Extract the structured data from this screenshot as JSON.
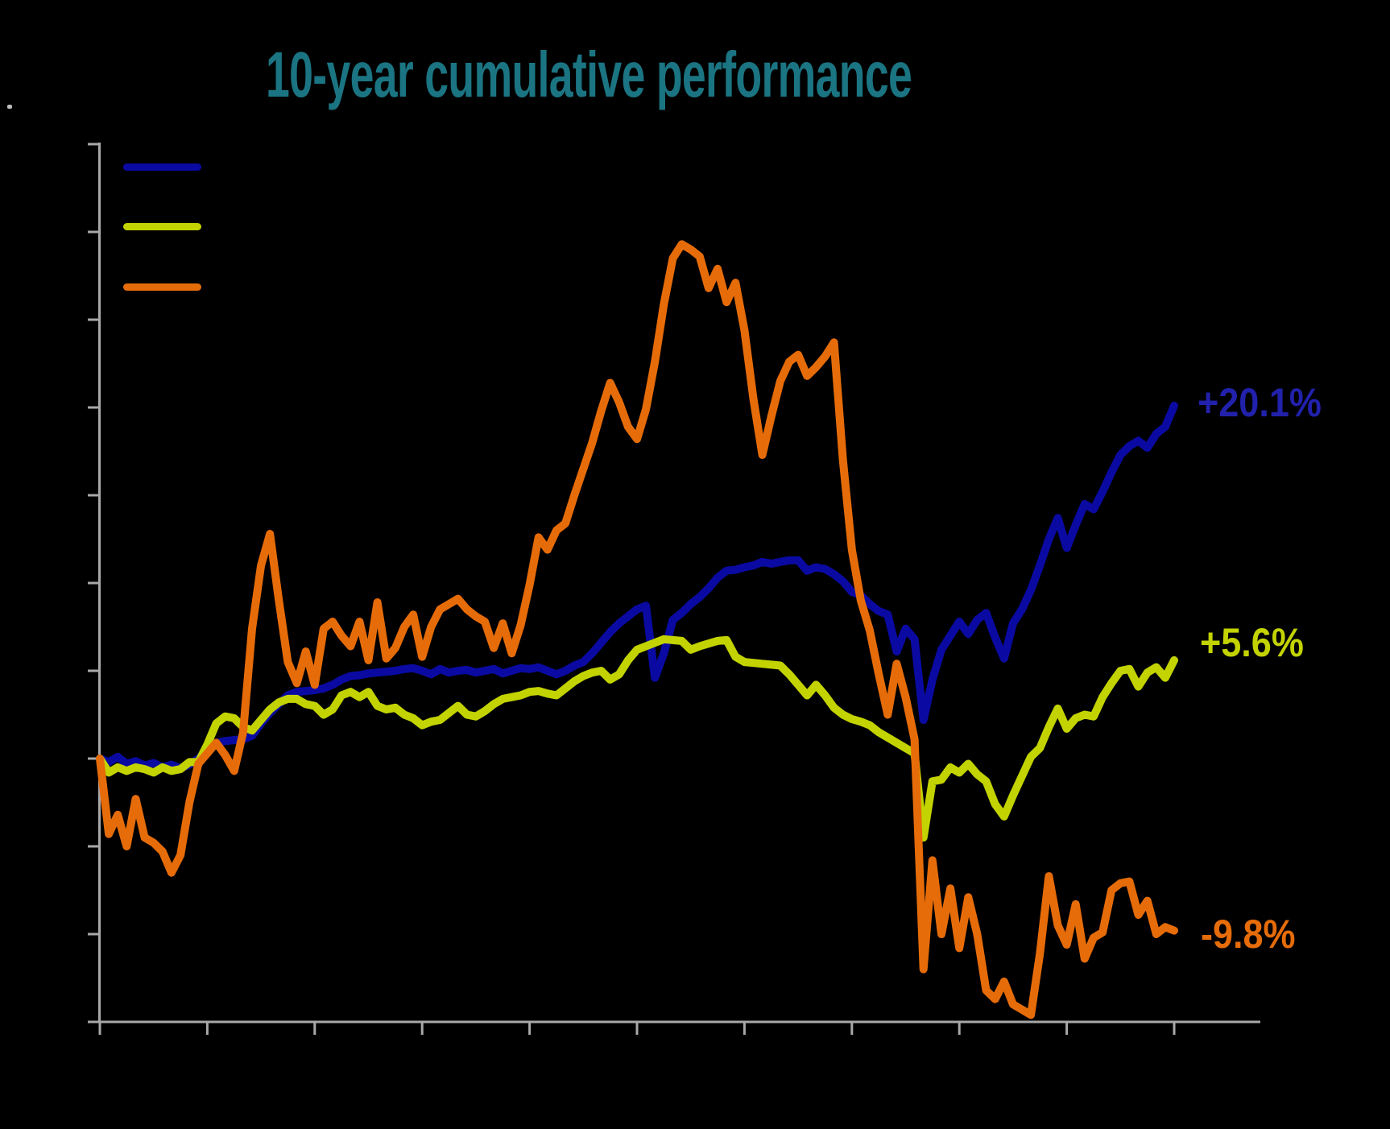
{
  "page": {
    "background_color": "#000000",
    "accent_colors": {
      "title_teal": "#1B7482",
      "axis_gray": "#A8A8A8",
      "navy": "#0A0AA2",
      "chartreuse": "#C3D300",
      "orange": "#E66C09"
    }
  },
  "title": {
    "text": "10-year cumulative performance",
    "color": "#1B7482"
  },
  "legend": {
    "position": "top-left-inside",
    "items": [
      {
        "name": "series-1",
        "color": "#0A0AA2",
        "label": ""
      },
      {
        "name": "series-2",
        "color": "#C3D300",
        "label": ""
      },
      {
        "name": "series-3",
        "color": "#E66C09",
        "label": ""
      }
    ]
  },
  "chart_data": {
    "type": "line",
    "title": "10-year cumulative performance",
    "xlabel": "",
    "ylabel": "",
    "x_axis": {
      "unit": "months",
      "min": 0,
      "max": 120,
      "tick_interval_months": 12,
      "tick_count": 11,
      "tick_labels_visible": false
    },
    "y_axis": {
      "unit": "percent",
      "min": -15,
      "max": 35,
      "tick_interval": 5,
      "tick_count": 11,
      "zero_baseline_at_start": true,
      "tick_labels_visible": false
    },
    "grid": false,
    "legend_position": "top-left-inside",
    "series": [
      {
        "name": "navy-line",
        "color": "#0A0AA2",
        "end_label": "+20.1%",
        "end_label_color": "#2121AC",
        "values": [
          0,
          -0.2,
          0.1,
          -0.3,
          -0.15,
          -0.4,
          -0.25,
          -0.5,
          -0.35,
          -0.55,
          -0.35,
          0,
          0.5,
          0.9,
          1.0,
          1.05,
          1.1,
          1.3,
          2.0,
          2.6,
          3.1,
          3.6,
          3.8,
          3.85,
          3.9,
          4.0,
          4.2,
          4.5,
          4.7,
          4.75,
          4.85,
          4.9,
          4.95,
          5.0,
          5.1,
          5.15,
          5.0,
          4.8,
          5.1,
          4.9,
          5.0,
          5.05,
          4.9,
          5.0,
          5.1,
          4.85,
          5.0,
          5.15,
          5.1,
          5.2,
          5.0,
          4.8,
          5.0,
          5.3,
          5.5,
          6.0,
          6.6,
          7.2,
          7.7,
          8.1,
          8.5,
          8.7,
          4.6,
          6.0,
          7.9,
          8.3,
          8.8,
          9.2,
          9.7,
          10.3,
          10.7,
          10.75,
          10.9,
          11.0,
          11.2,
          11.1,
          11.2,
          11.3,
          11.3,
          10.7,
          10.9,
          10.8,
          10.5,
          10.1,
          9.5,
          9.3,
          8.8,
          8.4,
          8.2,
          6.1,
          7.4,
          6.8,
          2.2,
          4.5,
          6.2,
          7.0,
          7.8,
          7.1,
          7.9,
          8.3,
          6.9,
          5.7,
          7.7,
          8.5,
          9.6,
          11.0,
          12.5,
          13.7,
          12.0,
          13.3,
          14.5,
          14.2,
          15.2,
          16.3,
          17.3,
          17.8,
          18.1,
          17.7,
          18.5,
          18.9,
          20.1
        ]
      },
      {
        "name": "chartreuse-line",
        "color": "#C3D300",
        "end_label": "+5.6%",
        "end_label_color": "#C3D300",
        "values": [
          0,
          -0.8,
          -0.5,
          -0.7,
          -0.5,
          -0.6,
          -0.8,
          -0.5,
          -0.7,
          -0.6,
          -0.2,
          -0.2,
          0.8,
          2.0,
          2.4,
          2.3,
          1.8,
          1.6,
          2.2,
          2.8,
          3.2,
          3.4,
          3.4,
          3.1,
          3.0,
          2.5,
          2.8,
          3.6,
          3.8,
          3.5,
          3.8,
          3.0,
          2.8,
          2.9,
          2.5,
          2.3,
          1.9,
          2.1,
          2.2,
          2.6,
          3.0,
          2.5,
          2.4,
          2.7,
          3.1,
          3.4,
          3.5,
          3.6,
          3.8,
          3.85,
          3.7,
          3.6,
          4.0,
          4.4,
          4.7,
          4.9,
          5.0,
          4.5,
          4.8,
          5.6,
          6.2,
          6.4,
          6.6,
          6.8,
          6.75,
          6.7,
          6.2,
          6.4,
          6.55,
          6.7,
          6.75,
          5.8,
          5.5,
          5.45,
          5.4,
          5.35,
          5.3,
          4.8,
          4.2,
          3.6,
          4.2,
          3.6,
          2.9,
          2.5,
          2.25,
          2.1,
          1.9,
          1.5,
          1.2,
          0.9,
          0.6,
          0.3,
          -4.5,
          -1.3,
          -1.2,
          -0.5,
          -0.8,
          -0.3,
          -0.9,
          -1.3,
          -2.6,
          -3.3,
          -2.1,
          -1.0,
          0.1,
          0.6,
          1.8,
          2.85,
          1.7,
          2.3,
          2.5,
          2.4,
          3.5,
          4.3,
          5.0,
          5.1,
          4.1,
          4.9,
          5.2,
          4.6,
          5.6
        ]
      },
      {
        "name": "orange-line",
        "color": "#E66C09",
        "end_label": "-9.8%",
        "end_label_color": "#E66C09",
        "values": [
          0,
          -4.3,
          -3.2,
          -5.0,
          -2.3,
          -4.5,
          -4.8,
          -5.3,
          -6.5,
          -5.5,
          -2.5,
          -0.3,
          0.3,
          0.9,
          0.2,
          -0.7,
          1.5,
          7.4,
          11.0,
          12.8,
          9.0,
          5.5,
          4.3,
          6.1,
          4.2,
          7.4,
          7.8,
          7.0,
          6.4,
          7.8,
          5.6,
          8.9,
          5.7,
          6.3,
          7.5,
          8.2,
          5.8,
          7.5,
          8.5,
          8.8,
          9.1,
          8.5,
          8.1,
          7.8,
          6.3,
          7.7,
          6.0,
          7.6,
          9.9,
          12.6,
          11.9,
          13.0,
          13.4,
          15.0,
          16.5,
          18.0,
          19.8,
          21.4,
          20.3,
          18.9,
          18.2,
          19.9,
          22.6,
          25.9,
          28.5,
          29.3,
          29.0,
          28.6,
          26.8,
          27.9,
          26.0,
          27.1,
          24.4,
          20.5,
          17.3,
          19.5,
          21.5,
          22.6,
          23.0,
          21.8,
          22.3,
          22.9,
          23.7,
          17.0,
          11.9,
          9.0,
          7.3,
          4.8,
          2.5,
          5.4,
          3.5,
          1.1,
          -12.0,
          -5.8,
          -10.0,
          -7.4,
          -10.8,
          -7.9,
          -10.0,
          -13.2,
          -13.7,
          -12.7,
          -14.0,
          -14.3,
          -14.6,
          -11.1,
          -6.7,
          -9.5,
          -10.6,
          -8.3,
          -11.4,
          -10.2,
          -9.9,
          -7.5,
          -7.1,
          -7.0,
          -8.9,
          -8.1,
          -10.0,
          -9.6,
          -9.8
        ]
      }
    ],
    "end_labels": [
      "+20.1%",
      "+5.6%",
      "-9.8%"
    ]
  }
}
